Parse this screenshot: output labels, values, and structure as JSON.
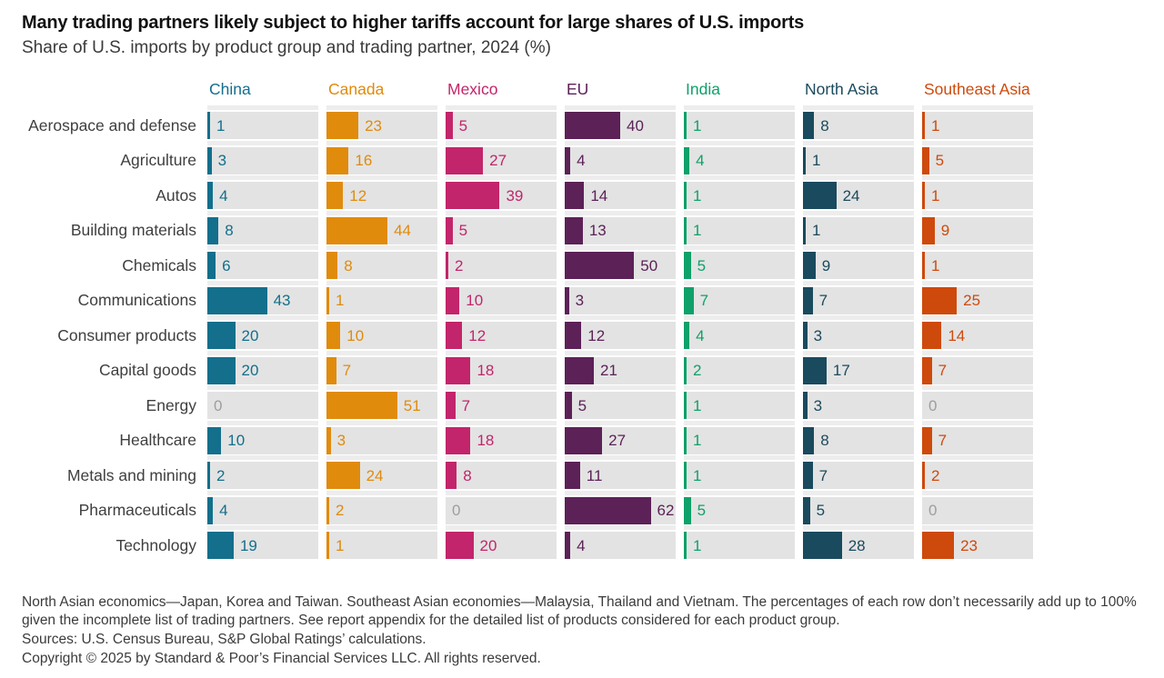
{
  "title": "Many trading partners likely subject to higher tariffs account for large shares of U.S. imports",
  "subtitle": "Share of U.S. imports by product group and trading partner, 2024 (%)",
  "chart_data": {
    "type": "bar",
    "orientation": "horizontal",
    "layout": "small-multiples-by-partner",
    "unit": "percent of U.S. imports",
    "scale_max": 80,
    "track_color": "#e3e3e3",
    "strip_color": "#ededed",
    "zero_label_color": "#9e9e9e",
    "partners": [
      {
        "name": "China",
        "color": "#136F8C"
      },
      {
        "name": "Canada",
        "color": "#E08B0C"
      },
      {
        "name": "Mexico",
        "color": "#C2256B"
      },
      {
        "name": "EU",
        "color": "#5C2157"
      },
      {
        "name": "India",
        "color": "#0FA169"
      },
      {
        "name": "North Asia",
        "color": "#1A4A5E"
      },
      {
        "name": "Southeast Asia",
        "color": "#CE4A0C"
      }
    ],
    "categories": [
      "Aerospace and defense",
      "Agriculture",
      "Autos",
      "Building materials",
      "Chemicals",
      "Communications",
      "Consumer products",
      "Capital goods",
      "Energy",
      "Healthcare",
      "Metals and mining",
      "Pharmaceuticals",
      "Technology"
    ],
    "rows": [
      {
        "category": "Aerospace and defense",
        "values": [
          1,
          23,
          5,
          40,
          1,
          8,
          1
        ]
      },
      {
        "category": "Agriculture",
        "values": [
          3,
          16,
          27,
          4,
          4,
          1,
          5
        ]
      },
      {
        "category": "Autos",
        "values": [
          4,
          12,
          39,
          14,
          1,
          24,
          1
        ]
      },
      {
        "category": "Building materials",
        "values": [
          8,
          44,
          5,
          13,
          1,
          1,
          9
        ]
      },
      {
        "category": "Chemicals",
        "values": [
          6,
          8,
          2,
          50,
          5,
          9,
          1
        ]
      },
      {
        "category": "Communications",
        "values": [
          43,
          1,
          10,
          3,
          7,
          7,
          25
        ]
      },
      {
        "category": "Consumer products",
        "values": [
          20,
          10,
          12,
          12,
          4,
          3,
          14
        ]
      },
      {
        "category": "Capital goods",
        "values": [
          20,
          7,
          18,
          21,
          2,
          17,
          7
        ]
      },
      {
        "category": "Energy",
        "values": [
          0,
          51,
          7,
          5,
          1,
          3,
          0
        ]
      },
      {
        "category": "Healthcare",
        "values": [
          10,
          3,
          18,
          27,
          1,
          8,
          7
        ]
      },
      {
        "category": "Metals and mining",
        "values": [
          2,
          24,
          8,
          11,
          1,
          7,
          2
        ]
      },
      {
        "category": "Pharmaceuticals",
        "values": [
          4,
          2,
          0,
          62,
          5,
          5,
          0
        ]
      },
      {
        "category": "Technology",
        "values": [
          19,
          1,
          20,
          4,
          1,
          28,
          23
        ]
      }
    ]
  },
  "footer": {
    "note": "North Asian economics—Japan, Korea and Taiwan. Southeast Asian economies—Malaysia, Thailand and Vietnam. The percentages of each row don’t necessarily add up to 100% given the incomplete list of trading partners. See report appendix for the detailed list of products considered for each product group.",
    "sources": "Sources: U.S. Census Bureau, S&P Global Ratings’ calculations.",
    "copyright": "Copyright © 2025 by Standard & Poor’s Financial Services LLC. All rights reserved."
  }
}
